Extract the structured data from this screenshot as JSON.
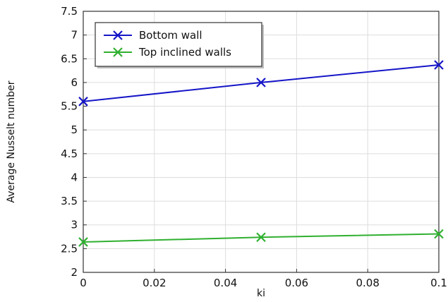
{
  "chart_data": {
    "type": "line",
    "title": "",
    "xlabel": "ki",
    "ylabel": "Average Nusselt number",
    "xlim": [
      0,
      0.1
    ],
    "ylim": [
      2,
      7.5
    ],
    "x_ticks": [
      "0",
      "0.02",
      "0.04",
      "0.06",
      "0.08",
      "0.1"
    ],
    "y_ticks": [
      "2",
      "2.5",
      "3",
      "3.5",
      "4",
      "4.5",
      "5",
      "5.5",
      "6",
      "6.5",
      "7",
      "7.5"
    ],
    "grid": true,
    "legend_position": "top-left",
    "x": [
      0,
      0.05,
      0.1
    ],
    "series": [
      {
        "name": "Bottom wall",
        "color": "#1515c8",
        "marker": "x",
        "values": [
          5.6,
          6.0,
          6.37
        ]
      },
      {
        "name": "Top inclined walls",
        "color": "#2fb02f",
        "marker": "x",
        "values": [
          2.64,
          2.74,
          2.81
        ]
      }
    ]
  }
}
